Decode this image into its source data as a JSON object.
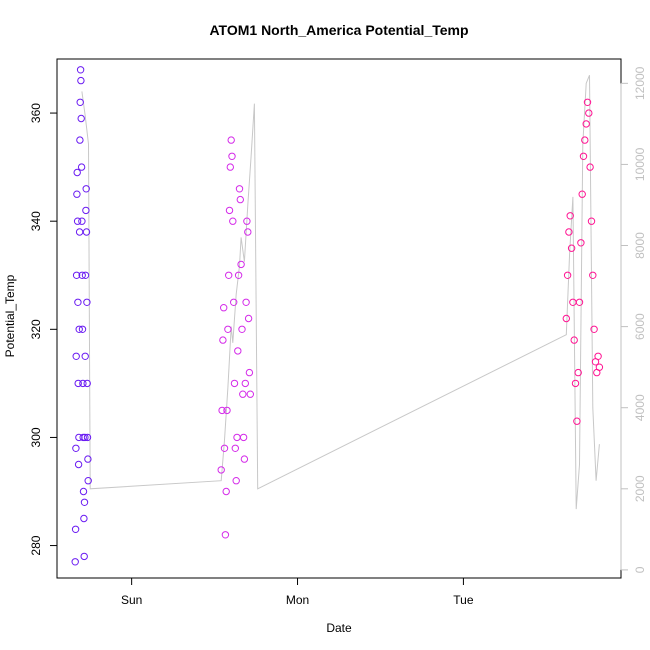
{
  "chart_data": {
    "type": "scatter",
    "title": "ATOM1 North_America Potential_Temp",
    "xlabel": "Date",
    "ylabel": "Potential_Temp",
    "x_ticks": [
      "Sun",
      "Mon",
      "Tue"
    ],
    "x_tick_days": [
      1,
      2,
      3
    ],
    "xlim": [
      0.55,
      3.95
    ],
    "ylim": [
      274,
      370
    ],
    "y_ticks": [
      280,
      300,
      320,
      340,
      360
    ],
    "y2_ticks": [
      0,
      2000,
      4000,
      6000,
      8000,
      10000,
      12000
    ],
    "y2lim": [
      -200,
      12600
    ],
    "point_colors": {
      "group1": "#6a1bf2",
      "group2": "#d42be9",
      "group3": "#ff1493"
    },
    "line_color": "#c8c8c8",
    "axis_color": "#000000",
    "right_axis_color": "#c0c0c0",
    "series": [
      {
        "x": [
          0.66,
          0.662,
          0.664,
          0.666,
          0.668,
          0.67,
          0.672,
          0.674,
          0.676,
          0.678,
          0.68,
          0.682,
          0.684,
          0.686,
          0.688,
          0.69,
          0.692,
          0.694,
          0.696,
          0.698,
          0.7,
          0.702,
          0.704,
          0.706,
          0.708,
          0.71,
          0.712,
          0.714,
          0.716,
          0.718,
          0.72,
          0.722,
          0.724,
          0.726,
          0.728,
          0.73,
          0.732,
          0.734,
          0.736,
          0.738
        ],
        "y": [
          277,
          283,
          298,
          315,
          330,
          345,
          349,
          340,
          325,
          310,
          295,
          300,
          320,
          338,
          355,
          362,
          368,
          366,
          359,
          350,
          340,
          330,
          320,
          310,
          300,
          290,
          285,
          278,
          288,
          300,
          315,
          330,
          342,
          346,
          338,
          325,
          310,
          300,
          296,
          292
        ]
      },
      {
        "x": [
          1.54,
          1.545,
          1.55,
          1.555,
          1.56,
          1.565,
          1.57,
          1.575,
          1.58,
          1.585,
          1.59,
          1.595,
          1.6,
          1.605,
          1.61,
          1.615,
          1.62,
          1.625,
          1.63,
          1.635,
          1.64,
          1.645,
          1.65,
          1.655,
          1.66,
          1.665,
          1.67,
          1.675,
          1.68,
          1.685,
          1.69,
          1.695,
          1.7,
          1.705,
          1.71,
          1.715
        ],
        "y": [
          294,
          305,
          318,
          324,
          298,
          282,
          290,
          305,
          320,
          330,
          342,
          350,
          355,
          352,
          340,
          325,
          310,
          298,
          292,
          300,
          316,
          330,
          346,
          344,
          332,
          320,
          308,
          300,
          296,
          310,
          325,
          340,
          338,
          322,
          312,
          308
        ]
      },
      {
        "x": [
          3.62,
          3.628,
          3.636,
          3.644,
          3.652,
          3.66,
          3.668,
          3.676,
          3.684,
          3.692,
          3.7,
          3.708,
          3.716,
          3.724,
          3.732,
          3.74,
          3.748,
          3.756,
          3.764,
          3.772,
          3.78,
          3.788,
          3.796,
          3.804,
          3.812,
          3.82
        ],
        "y": [
          322,
          330,
          338,
          341,
          335,
          325,
          318,
          310,
          303,
          312,
          325,
          336,
          345,
          352,
          355,
          358,
          362,
          360,
          350,
          340,
          330,
          320,
          314,
          312,
          315,
          313
        ]
      }
    ],
    "line_series": {
      "x": [
        0.7,
        0.72,
        0.74,
        0.75,
        1.54,
        1.56,
        1.58,
        1.6,
        1.61,
        1.63,
        1.65,
        1.66,
        1.68,
        1.7,
        1.72,
        1.74,
        1.76,
        3.62,
        3.64,
        3.66,
        3.68,
        3.7,
        3.72,
        3.74,
        3.76,
        3.78,
        3.8,
        3.82
      ],
      "y": [
        11800,
        11200,
        10500,
        2000,
        2200,
        3200,
        4500,
        6000,
        5600,
        6800,
        7500,
        8200,
        7600,
        9000,
        10200,
        11500,
        2000,
        5800,
        7800,
        9200,
        1500,
        2600,
        10500,
        12000,
        12200,
        4000,
        2200,
        3100
      ]
    }
  }
}
